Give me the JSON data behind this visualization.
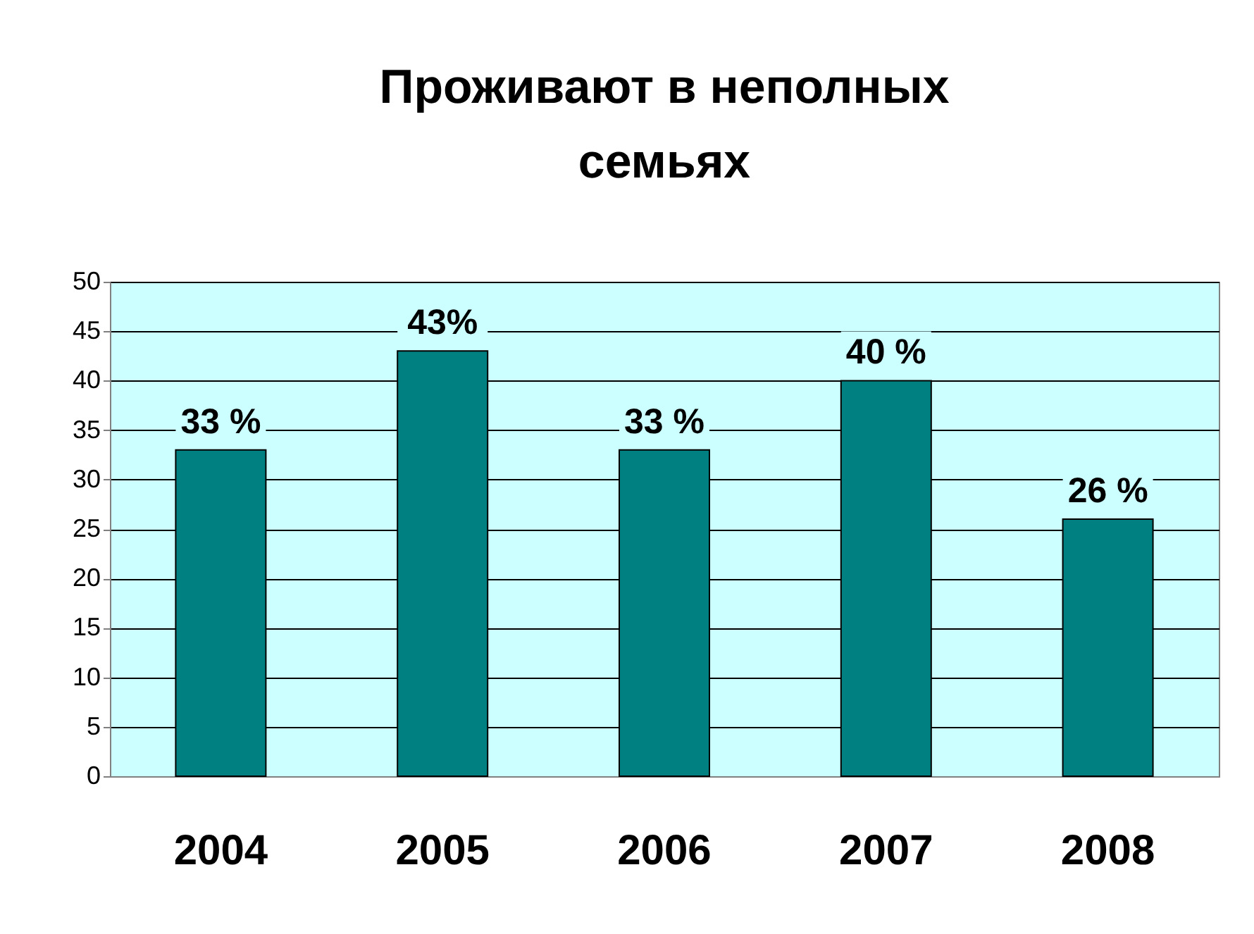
{
  "chart_data": {
    "type": "bar",
    "title": "Проживают в  неполных\nсемьях",
    "categories": [
      "2004",
      "2005",
      "2006",
      "2007",
      "2008"
    ],
    "values": [
      33,
      43,
      33,
      40,
      26
    ],
    "value_labels": [
      "33 %",
      "43%",
      "33 %",
      "40 %",
      "26 %"
    ],
    "color": "#008080",
    "ylim": [
      0,
      50
    ],
    "yticks": [
      0,
      5,
      10,
      15,
      20,
      25,
      30,
      35,
      40,
      45,
      50
    ],
    "grid": "y"
  }
}
